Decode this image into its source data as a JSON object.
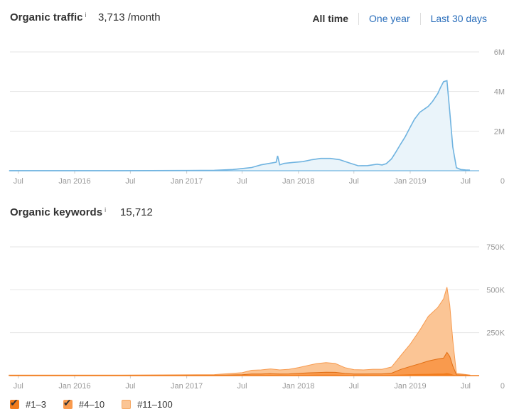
{
  "traffic": {
    "title": "Organic traffic",
    "info": "i",
    "value": "3,713 /month"
  },
  "range_tabs": [
    {
      "label": "All time",
      "active": true
    },
    {
      "label": "One year",
      "active": false
    },
    {
      "label": "Last 30 days",
      "active": false
    }
  ],
  "keywords": {
    "title": "Organic keywords",
    "info": "i",
    "value": "15,712"
  },
  "legend": [
    {
      "label": "#1–3",
      "color": "#f27c1c",
      "checked": true
    },
    {
      "label": "#4–10",
      "color": "#f99a4d",
      "checked": true
    },
    {
      "label": "#11–100",
      "color": "#fbc595",
      "checked": false
    }
  ],
  "chart_data": [
    {
      "type": "area",
      "y_ticks": [
        "6M",
        "4M",
        "2M",
        "0"
      ],
      "ylim": [
        0,
        6000000
      ],
      "x_ticks": [
        "Jul",
        "Jan 2016",
        "Jul",
        "Jan 2017",
        "Jul",
        "Jan 2018",
        "Jul",
        "Jan 2019",
        "Jul"
      ],
      "grid": true,
      "colors": {
        "line": "#6fb3e0",
        "fill": "#eaf4fa"
      },
      "series": [
        {
          "x": [
            "2015-06-01",
            "2015-09-01",
            "2016-01-01",
            "2016-06-01",
            "2017-01-01",
            "2017-04-01",
            "2017-06-01",
            "2017-07-01",
            "2017-08-01",
            "2017-09-01",
            "2017-10-01",
            "2017-10-20",
            "2017-10-25",
            "2017-11-01",
            "2017-11-15",
            "2017-12-15",
            "2018-01-15",
            "2018-02-15",
            "2018-03-15",
            "2018-04-15",
            "2018-05-15",
            "2018-06-15",
            "2018-07-15",
            "2018-08-15",
            "2018-09-15",
            "2018-10-01",
            "2018-10-15",
            "2018-11-01",
            "2018-11-15",
            "2018-12-01",
            "2018-12-15",
            "2019-01-01",
            "2019-01-15",
            "2019-02-01",
            "2019-02-15",
            "2019-03-01",
            "2019-03-15",
            "2019-04-01",
            "2019-04-10",
            "2019-04-20",
            "2019-05-01",
            "2019-05-10",
            "2019-05-20",
            "2019-06-01",
            "2019-06-15",
            "2019-07-01",
            "2019-07-15"
          ],
          "y": [
            5000,
            5000,
            5000,
            5000,
            10000,
            20000,
            60000,
            110000,
            160000,
            300000,
            380000,
            430000,
            750000,
            300000,
            370000,
            420000,
            460000,
            560000,
            620000,
            620000,
            560000,
            400000,
            250000,
            260000,
            330000,
            290000,
            360000,
            600000,
            940000,
            1350000,
            1700000,
            2200000,
            2600000,
            2950000,
            3100000,
            3250000,
            3500000,
            3900000,
            4200000,
            4500000,
            4550000,
            3000000,
            1200000,
            150000,
            60000,
            40000,
            30000
          ]
        }
      ]
    },
    {
      "type": "area",
      "y_ticks": [
        "750K",
        "500K",
        "250K",
        "0"
      ],
      "ylim": [
        0,
        750000
      ],
      "x_ticks": [
        "Jul",
        "Jan 2016",
        "Jul",
        "Jan 2017",
        "Jul",
        "Jan 2018",
        "Jul",
        "Jan 2019",
        "Jul"
      ],
      "grid": true,
      "stacked": true,
      "series": [
        {
          "name": "#11–100",
          "x": [
            "2015-06-01",
            "2016-06-01",
            "2017-04-01",
            "2017-07-01",
            "2017-08-01",
            "2017-09-01",
            "2017-10-01",
            "2017-11-01",
            "2017-12-01",
            "2018-01-01",
            "2018-02-01",
            "2018-03-01",
            "2018-04-01",
            "2018-05-01",
            "2018-06-01",
            "2018-07-01",
            "2018-08-01",
            "2018-09-01",
            "2018-10-01",
            "2018-11-01",
            "2018-12-01",
            "2019-01-01",
            "2019-02-01",
            "2019-03-01",
            "2019-04-01",
            "2019-04-20",
            "2019-05-01",
            "2019-05-10",
            "2019-05-20",
            "2019-06-01",
            "2019-07-15"
          ],
          "y": [
            2000,
            2000,
            4000,
            12000,
            22000,
            24000,
            28000,
            24000,
            27000,
            34000,
            43000,
            52000,
            56000,
            52000,
            34000,
            26000,
            24000,
            27000,
            27000,
            36000,
            80000,
            130000,
            195000,
            260000,
            300000,
            345000,
            380000,
            300000,
            150000,
            8000,
            2000
          ]
        },
        {
          "name": "#4–10",
          "x": [
            "2015-06-01",
            "2016-06-01",
            "2017-04-01",
            "2017-07-01",
            "2017-08-01",
            "2017-09-01",
            "2017-10-01",
            "2017-11-01",
            "2017-12-01",
            "2018-01-01",
            "2018-02-01",
            "2018-03-01",
            "2018-04-01",
            "2018-05-01",
            "2018-06-01",
            "2018-07-01",
            "2018-08-01",
            "2018-09-01",
            "2018-10-01",
            "2018-11-01",
            "2018-12-01",
            "2019-01-01",
            "2019-02-01",
            "2019-03-01",
            "2019-04-01",
            "2019-04-20",
            "2019-05-01",
            "2019-05-10",
            "2019-05-20",
            "2019-06-01",
            "2019-07-15"
          ],
          "y": [
            500,
            500,
            1000,
            3000,
            6000,
            6000,
            7000,
            6000,
            7000,
            9000,
            12000,
            13000,
            15000,
            14000,
            9000,
            6000,
            6000,
            7000,
            7000,
            10000,
            30000,
            45000,
            60000,
            75000,
            85000,
            90000,
            120000,
            100000,
            50000,
            4000,
            1000
          ]
        },
        {
          "name": "#1–3",
          "x": [
            "2015-06-01",
            "2016-06-01",
            "2017-04-01",
            "2017-07-01",
            "2017-08-01",
            "2017-09-01",
            "2017-10-01",
            "2017-11-01",
            "2017-12-01",
            "2018-01-01",
            "2018-02-01",
            "2018-03-01",
            "2018-04-01",
            "2018-05-01",
            "2018-06-01",
            "2018-07-01",
            "2018-08-01",
            "2018-09-01",
            "2018-10-01",
            "2018-11-01",
            "2018-12-01",
            "2019-01-01",
            "2019-02-01",
            "2019-03-01",
            "2019-04-01",
            "2019-04-20",
            "2019-05-01",
            "2019-05-10",
            "2019-05-20",
            "2019-06-01",
            "2019-07-15"
          ],
          "y": [
            500,
            500,
            1000,
            2000,
            3000,
            3000,
            4000,
            3000,
            3000,
            4000,
            4000,
            5000,
            5000,
            5000,
            4000,
            3000,
            3000,
            3000,
            3000,
            4000,
            6000,
            8000,
            9000,
            10000,
            12000,
            12000,
            15000,
            12000,
            6000,
            1000,
            500
          ]
        }
      ]
    }
  ]
}
